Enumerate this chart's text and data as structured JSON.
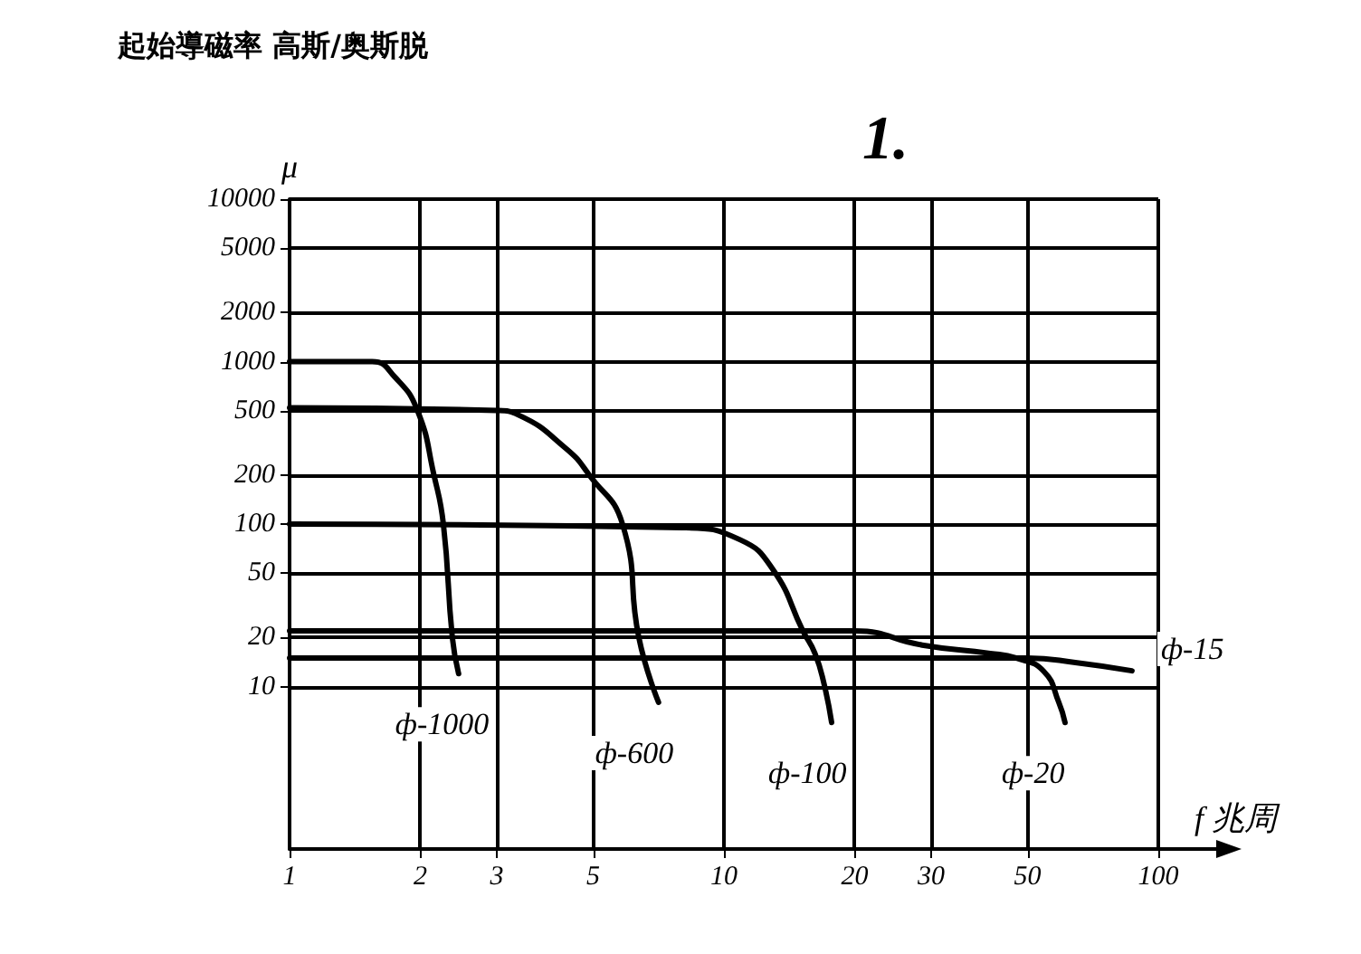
{
  "chart_data": {
    "type": "line",
    "title": "起始導磁率 高斯/奥斯脱",
    "ylabel": "μ",
    "xlabel": "f 兆周",
    "annotations": [
      "1."
    ],
    "log": "xy",
    "grid": true,
    "legend": false,
    "marker": "none",
    "line_style": "solid",
    "xlim": [
      1,
      100
    ],
    "xticks": [
      1,
      2,
      3,
      5,
      10,
      20,
      30,
      50,
      100
    ],
    "ylim": [
      1,
      10000
    ],
    "yticks": [
      10,
      20,
      50,
      100,
      200,
      500,
      1000,
      2000,
      5000,
      10000
    ],
    "series": [
      {
        "name": "ф-1000",
        "color": "#000000",
        "x": [
          1,
          1.55,
          1.75,
          1.97,
          2.15,
          2.26,
          2.37,
          2.45
        ],
        "values": [
          1000,
          1000,
          800,
          500,
          200,
          100,
          20,
          12
        ]
      },
      {
        "name": "ф-600",
        "color": "#000000",
        "x": [
          1,
          3,
          3.36,
          4.34,
          4.9,
          5.84,
          6.37,
          7.07
        ],
        "values": [
          520,
          500,
          470,
          290,
          200,
          100,
          20,
          8
        ]
      },
      {
        "name": "ф-100",
        "color": "#000000",
        "x": [
          1,
          8,
          10.9,
          13,
          15.2,
          16.2,
          17,
          17.7
        ],
        "values": [
          100,
          95,
          80,
          52,
          22,
          16,
          10.4,
          6
        ]
      },
      {
        "name": "ф-20",
        "color": "#000000",
        "x": [
          1,
          20,
          28.6,
          41,
          47,
          54.5,
          59,
          61
        ],
        "values": [
          22,
          22,
          18,
          16,
          15,
          12.4,
          8,
          6
        ]
      },
      {
        "name": "ф-15",
        "color": "#000000",
        "x": [
          1,
          40,
          50,
          65,
          87
        ],
        "values": [
          15,
          15,
          15,
          14,
          12.5
        ]
      }
    ]
  }
}
